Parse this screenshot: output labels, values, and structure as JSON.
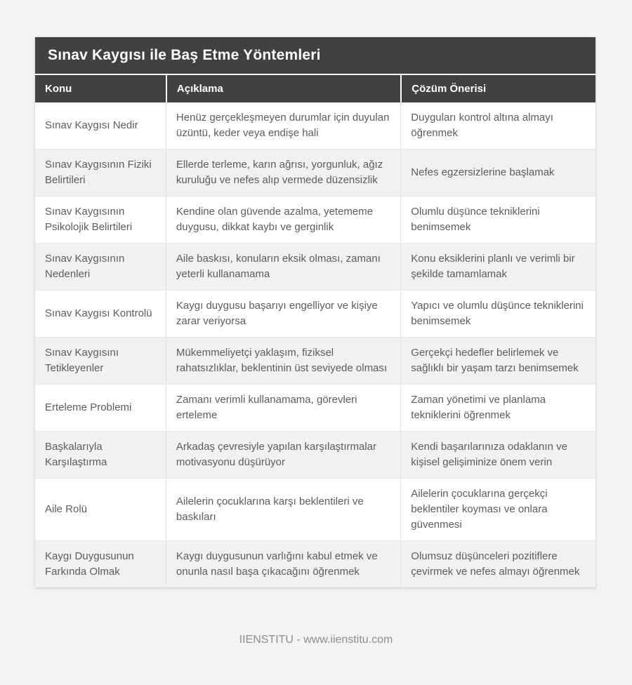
{
  "page": {
    "title": "Sınav Kaygısı ile Baş Etme Yöntemleri",
    "footer": "IIENSTITU - www.iienstitu.com"
  },
  "table": {
    "columns": [
      "Konu",
      "Açıklama",
      "Çözüm Önerisi"
    ],
    "rows": [
      {
        "konu": "Sınav Kaygısı Nedir",
        "aciklama": "Henüz gerçekleşmeyen durumlar için duyulan üzüntü, keder veya endişe hali",
        "cozum": "Duyguları kontrol altına almayı öğrenmek"
      },
      {
        "konu": "Sınav Kaygısının Fiziki Belirtileri",
        "aciklama": "Ellerde terleme, karın ağrısı, yorgunluk, ağız kuruluğu ve nefes alıp vermede düzensizlik",
        "cozum": "Nefes egzersizlerine başlamak"
      },
      {
        "konu": "Sınav Kaygısının Psikolojik Belirtileri",
        "aciklama": "Kendine olan güvende azalma, yetememe duygusu, dikkat kaybı ve gerginlik",
        "cozum": "Olumlu düşünce tekniklerini benimsemek"
      },
      {
        "konu": "Sınav Kaygısının Nedenleri",
        "aciklama": "Aile baskısı, konuların eksik olması, zamanı yeterli kullanamama",
        "cozum": "Konu eksiklerini planlı ve verimli bir şekilde tamamlamak"
      },
      {
        "konu": "Sınav Kaygısı Kontrolü",
        "aciklama": "Kaygı duygusu başarıyı engelliyor ve kişiye zarar veriyorsa",
        "cozum": "Yapıcı ve olumlu düşünce tekniklerini benimsemek"
      },
      {
        "konu": "Sınav Kaygısını Tetikleyenler",
        "aciklama": "Mükemmeliyetçi yaklaşım, fiziksel rahatsızlıklar, beklentinin üst seviyede olması",
        "cozum": "Gerçekçi hedefler belirlemek ve sağlıklı bir yaşam tarzı benimsemek"
      },
      {
        "konu": "Erteleme Problemi",
        "aciklama": "Zamanı verimli kullanamama, görevleri erteleme",
        "cozum": "Zaman yönetimi ve planlama tekniklerini öğrenmek"
      },
      {
        "konu": "Başkalarıyla Karşılaştırma",
        "aciklama": "Arkadaş çevresiyle yapılan karşılaştırmalar motivasyonu düşürüyor",
        "cozum": "Kendi başarılarınıza odaklanın ve kişisel gelişiminize önem verin"
      },
      {
        "konu": "Aile Rolü",
        "aciklama": "Ailelerin çocuklarına karşı beklentileri ve baskıları",
        "cozum": "Ailelerin çocuklarına gerçekçi beklentiler koyması ve onlara güvenmesi"
      },
      {
        "konu": "Kaygı Duygusunun Farkında Olmak",
        "aciklama": "Kaygı duygusunun varlığını kabul etmek ve onunla nasıl başa çıkacağını öğrenmek",
        "cozum": "Olumsuz düşünceleri pozitiflere çevirmek ve nefes almayı öğrenmek"
      }
    ]
  },
  "colors": {
    "page_background": "#f3f3f3",
    "header_background": "#414142",
    "header_text": "#ffffff",
    "row_stripe": "#f1f1f1",
    "body_text": "#595d61",
    "footer_text": "#8e8e8e"
  }
}
